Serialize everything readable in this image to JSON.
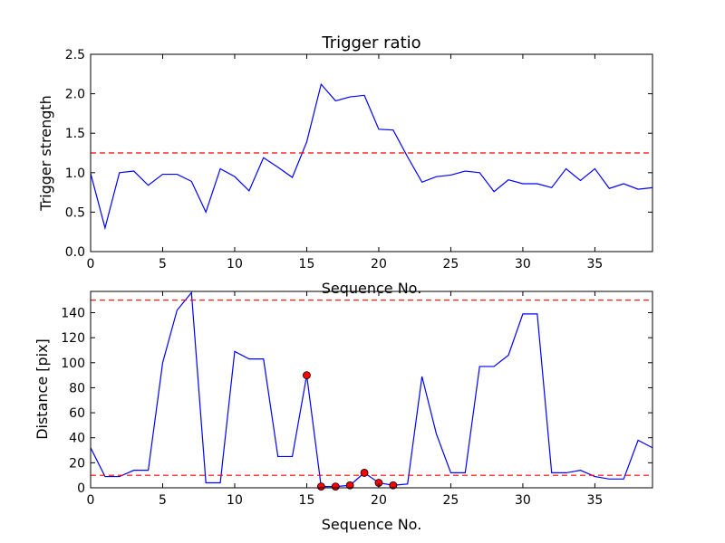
{
  "chart_data": [
    {
      "type": "line",
      "title": "Trigger ratio",
      "xlabel": "Sequence No.",
      "ylabel": "Trigger strength",
      "xlim": [
        0,
        39
      ],
      "ylim": [
        0,
        2.5
      ],
      "xticks": [
        0,
        5,
        10,
        15,
        20,
        25,
        30,
        35
      ],
      "xtick_labels": [
        "0",
        "5",
        "10",
        "15",
        "20",
        "25",
        "30",
        "35"
      ],
      "yticks": [
        0,
        0.5,
        1,
        1.5,
        2,
        2.5
      ],
      "ytick_labels": [
        "0.0",
        "0.5",
        "1.0",
        "1.5",
        "2.0",
        "2.5"
      ],
      "grid": false,
      "x": [
        0,
        1,
        2,
        3,
        4,
        5,
        6,
        7,
        8,
        9,
        10,
        11,
        12,
        13,
        14,
        15,
        16,
        17,
        18,
        19,
        20,
        21,
        22,
        23,
        24,
        25,
        26,
        27,
        28,
        29,
        30,
        31,
        32,
        33,
        34,
        35,
        36,
        37,
        38,
        39
      ],
      "series": [
        {
          "color": "#0000ff",
          "values": [
            0.99,
            0.3,
            1.0,
            1.02,
            0.84,
            0.98,
            0.98,
            0.89,
            0.5,
            1.05,
            0.95,
            0.77,
            1.19,
            1.07,
            0.94,
            1.39,
            2.12,
            1.91,
            1.96,
            1.98,
            1.55,
            1.54,
            1.2,
            0.88,
            0.95,
            0.97,
            1.02,
            1.0,
            0.76,
            0.91,
            0.86,
            0.86,
            0.81,
            1.05,
            0.9,
            1.05,
            0.8,
            0.86,
            0.79,
            0.81
          ]
        }
      ],
      "hlines": [
        {
          "y": 1.25,
          "color": "#ff0000",
          "style": "dashed"
        }
      ]
    },
    {
      "type": "line",
      "title": "",
      "xlabel": "Sequence No.",
      "ylabel": "Distance [pix]",
      "xlim": [
        0,
        39
      ],
      "ylim": [
        0,
        157
      ],
      "xticks": [
        0,
        5,
        10,
        15,
        20,
        25,
        30,
        35
      ],
      "xtick_labels": [
        "0",
        "5",
        "10",
        "15",
        "20",
        "25",
        "30",
        "35"
      ],
      "yticks": [
        0,
        20,
        40,
        60,
        80,
        100,
        120,
        140
      ],
      "ytick_labels": [
        "0",
        "20",
        "40",
        "60",
        "80",
        "100",
        "120",
        "140"
      ],
      "grid": false,
      "x": [
        0,
        1,
        2,
        3,
        4,
        5,
        6,
        7,
        8,
        9,
        10,
        11,
        12,
        13,
        14,
        15,
        16,
        17,
        18,
        19,
        20,
        21,
        22,
        23,
        24,
        25,
        26,
        27,
        28,
        29,
        30,
        31,
        32,
        33,
        34,
        35,
        36,
        37,
        38,
        39
      ],
      "series": [
        {
          "color": "#0000ff",
          "values": [
            32,
            9,
            9,
            14,
            14,
            100,
            142,
            156,
            4,
            4,
            109,
            103,
            103,
            25,
            25,
            90,
            1,
            1,
            2,
            12,
            4,
            2,
            3,
            89,
            43,
            12,
            12,
            97,
            97,
            106,
            139,
            139,
            12,
            12,
            14,
            9,
            7,
            7,
            38,
            32
          ]
        }
      ],
      "markers": {
        "color": "#ff0000",
        "points": [
          {
            "x": 15,
            "y": 90
          },
          {
            "x": 16,
            "y": 1
          },
          {
            "x": 17,
            "y": 1
          },
          {
            "x": 18,
            "y": 2
          },
          {
            "x": 19,
            "y": 12
          },
          {
            "x": 20,
            "y": 4
          },
          {
            "x": 21,
            "y": 2
          }
        ]
      },
      "hlines": [
        {
          "y": 150,
          "color": "#ff0000",
          "style": "dashed"
        },
        {
          "y": 10,
          "color": "#ff0000",
          "style": "dashed"
        }
      ]
    }
  ]
}
